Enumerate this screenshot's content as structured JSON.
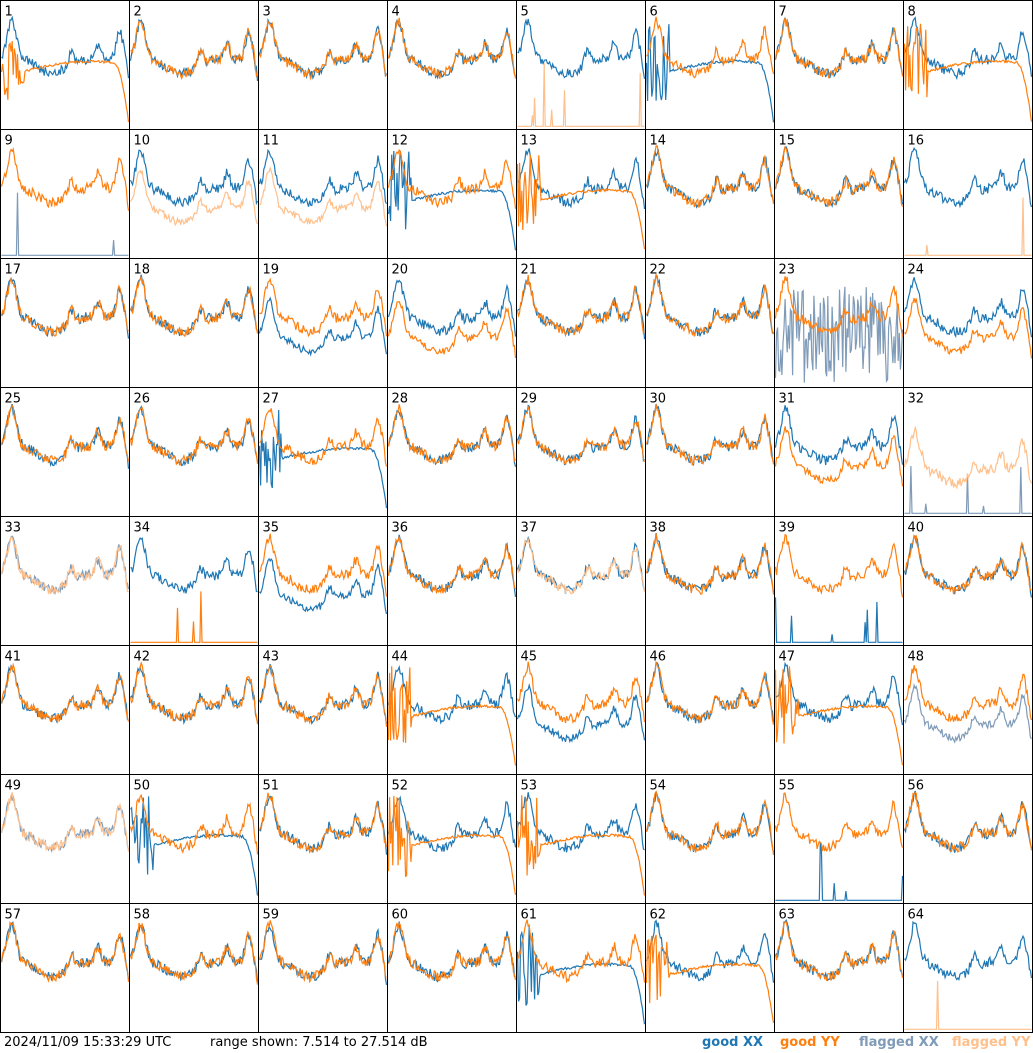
{
  "footer": {
    "timestamp": "2024/11/09 15:33:29 UTC",
    "range_text": "range shown: 7.514 to 27.514 dB"
  },
  "legend": [
    {
      "label": "good XX",
      "color": "#1f77b4"
    },
    {
      "label": "good YY",
      "color": "#ff7f0e"
    },
    {
      "label": "flagged XX",
      "color": "#7f9bb8"
    },
    {
      "label": "flagged YY",
      "color": "#ffc08c"
    }
  ],
  "chart_data": {
    "type": "line",
    "ylim": [
      7.514,
      27.514
    ],
    "grid": {
      "rows": 8,
      "cols": 8
    },
    "panels": [
      {
        "id": "1",
        "xx": "good",
        "yy": "good",
        "xx_shape": "normal",
        "yy_shape": "droop"
      },
      {
        "id": "2",
        "xx": "good",
        "yy": "good",
        "xx_shape": "normal",
        "yy_shape": "normal"
      },
      {
        "id": "3",
        "xx": "good",
        "yy": "good",
        "xx_shape": "normal",
        "yy_shape": "normal"
      },
      {
        "id": "4",
        "xx": "good",
        "yy": "good",
        "xx_shape": "normal",
        "yy_shape": "normal"
      },
      {
        "id": "5",
        "xx": "good",
        "yy": "flagged",
        "xx_shape": "normal",
        "yy_shape": "dead"
      },
      {
        "id": "6",
        "xx": "good",
        "yy": "good",
        "xx_shape": "droop",
        "yy_shape": "normal"
      },
      {
        "id": "7",
        "xx": "good",
        "yy": "good",
        "xx_shape": "normal",
        "yy_shape": "normal"
      },
      {
        "id": "8",
        "xx": "good",
        "yy": "good",
        "xx_shape": "normal",
        "yy_shape": "droop"
      },
      {
        "id": "9",
        "xx": "flagged",
        "yy": "good",
        "xx_shape": "dead",
        "yy_shape": "normal"
      },
      {
        "id": "10",
        "xx": "good",
        "yy": "flagged",
        "xx_shape": "normal",
        "yy_shape": "low"
      },
      {
        "id": "11",
        "xx": "good",
        "yy": "flagged",
        "xx_shape": "normal",
        "yy_shape": "low"
      },
      {
        "id": "12",
        "xx": "good",
        "yy": "good",
        "xx_shape": "droop",
        "yy_shape": "normal"
      },
      {
        "id": "13",
        "xx": "good",
        "yy": "good",
        "xx_shape": "normal",
        "yy_shape": "droop"
      },
      {
        "id": "14",
        "xx": "good",
        "yy": "good",
        "xx_shape": "normal",
        "yy_shape": "normal"
      },
      {
        "id": "15",
        "xx": "good",
        "yy": "good",
        "xx_shape": "normal",
        "yy_shape": "normal"
      },
      {
        "id": "16",
        "xx": "good",
        "yy": "flagged",
        "xx_shape": "normal",
        "yy_shape": "dead"
      },
      {
        "id": "17",
        "xx": "good",
        "yy": "good",
        "xx_shape": "normal",
        "yy_shape": "normal"
      },
      {
        "id": "18",
        "xx": "good",
        "yy": "good",
        "xx_shape": "normal",
        "yy_shape": "normal"
      },
      {
        "id": "19",
        "xx": "good",
        "yy": "good",
        "xx_shape": "low",
        "yy_shape": "normal"
      },
      {
        "id": "20",
        "xx": "good",
        "yy": "good",
        "xx_shape": "normal",
        "yy_shape": "low"
      },
      {
        "id": "21",
        "xx": "good",
        "yy": "good",
        "xx_shape": "normal",
        "yy_shape": "normal"
      },
      {
        "id": "22",
        "xx": "good",
        "yy": "good",
        "xx_shape": "normal",
        "yy_shape": "normal"
      },
      {
        "id": "23",
        "xx": "flagged",
        "yy": "good",
        "xx_shape": "noisy",
        "yy_shape": "normal"
      },
      {
        "id": "24",
        "xx": "good",
        "yy": "good",
        "xx_shape": "normal",
        "yy_shape": "low"
      },
      {
        "id": "25",
        "xx": "good",
        "yy": "good",
        "xx_shape": "normal",
        "yy_shape": "normal"
      },
      {
        "id": "26",
        "xx": "good",
        "yy": "good",
        "xx_shape": "normal",
        "yy_shape": "normal"
      },
      {
        "id": "27",
        "xx": "good",
        "yy": "good",
        "xx_shape": "droop",
        "yy_shape": "normal"
      },
      {
        "id": "28",
        "xx": "good",
        "yy": "good",
        "xx_shape": "normal",
        "yy_shape": "normal"
      },
      {
        "id": "29",
        "xx": "good",
        "yy": "good",
        "xx_shape": "normal",
        "yy_shape": "normal"
      },
      {
        "id": "30",
        "xx": "good",
        "yy": "good",
        "xx_shape": "normal",
        "yy_shape": "normal"
      },
      {
        "id": "31",
        "xx": "good",
        "yy": "good",
        "xx_shape": "normal",
        "yy_shape": "low"
      },
      {
        "id": "32",
        "xx": "flagged",
        "yy": "flagged",
        "xx_shape": "dead",
        "yy_shape": "spiky"
      },
      {
        "id": "33",
        "xx": "flagged",
        "yy": "flagged",
        "xx_shape": "normal",
        "yy_shape": "normal"
      },
      {
        "id": "34",
        "xx": "good",
        "yy": "good",
        "xx_shape": "normal",
        "yy_shape": "dead"
      },
      {
        "id": "35",
        "xx": "good",
        "yy": "good",
        "xx_shape": "low",
        "yy_shape": "normal"
      },
      {
        "id": "36",
        "xx": "good",
        "yy": "good",
        "xx_shape": "normal",
        "yy_shape": "normal"
      },
      {
        "id": "37",
        "xx": "good",
        "yy": "flagged",
        "xx_shape": "normal",
        "yy_shape": "normal"
      },
      {
        "id": "38",
        "xx": "good",
        "yy": "good",
        "xx_shape": "normal",
        "yy_shape": "normal"
      },
      {
        "id": "39",
        "xx": "good",
        "yy": "good",
        "xx_shape": "dead",
        "yy_shape": "normal"
      },
      {
        "id": "40",
        "xx": "good",
        "yy": "good",
        "xx_shape": "normal",
        "yy_shape": "normal"
      },
      {
        "id": "41",
        "xx": "good",
        "yy": "good",
        "xx_shape": "normal",
        "yy_shape": "normal"
      },
      {
        "id": "42",
        "xx": "good",
        "yy": "good",
        "xx_shape": "normal",
        "yy_shape": "normal"
      },
      {
        "id": "43",
        "xx": "good",
        "yy": "good",
        "xx_shape": "normal",
        "yy_shape": "normal"
      },
      {
        "id": "44",
        "xx": "good",
        "yy": "good",
        "xx_shape": "normal",
        "yy_shape": "droop"
      },
      {
        "id": "45",
        "xx": "good",
        "yy": "good",
        "xx_shape": "low",
        "yy_shape": "normal"
      },
      {
        "id": "46",
        "xx": "good",
        "yy": "good",
        "xx_shape": "normal",
        "yy_shape": "normal"
      },
      {
        "id": "47",
        "xx": "good",
        "yy": "good",
        "xx_shape": "normal",
        "yy_shape": "droop"
      },
      {
        "id": "48",
        "xx": "flagged",
        "yy": "good",
        "xx_shape": "low",
        "yy_shape": "normal"
      },
      {
        "id": "49",
        "xx": "flagged",
        "yy": "flagged",
        "xx_shape": "normal",
        "yy_shape": "normal"
      },
      {
        "id": "50",
        "xx": "good",
        "yy": "good",
        "xx_shape": "droop",
        "yy_shape": "normal"
      },
      {
        "id": "51",
        "xx": "good",
        "yy": "good",
        "xx_shape": "normal",
        "yy_shape": "normal"
      },
      {
        "id": "52",
        "xx": "good",
        "yy": "good",
        "xx_shape": "normal",
        "yy_shape": "droop"
      },
      {
        "id": "53",
        "xx": "good",
        "yy": "good",
        "xx_shape": "normal",
        "yy_shape": "droop"
      },
      {
        "id": "54",
        "xx": "good",
        "yy": "good",
        "xx_shape": "normal",
        "yy_shape": "normal"
      },
      {
        "id": "55",
        "xx": "good",
        "yy": "good",
        "xx_shape": "dead",
        "yy_shape": "normal"
      },
      {
        "id": "56",
        "xx": "good",
        "yy": "good",
        "xx_shape": "normal",
        "yy_shape": "normal"
      },
      {
        "id": "57",
        "xx": "good",
        "yy": "good",
        "xx_shape": "normal",
        "yy_shape": "normal"
      },
      {
        "id": "58",
        "xx": "good",
        "yy": "good",
        "xx_shape": "normal",
        "yy_shape": "normal"
      },
      {
        "id": "59",
        "xx": "good",
        "yy": "good",
        "xx_shape": "normal",
        "yy_shape": "normal"
      },
      {
        "id": "60",
        "xx": "good",
        "yy": "good",
        "xx_shape": "normal",
        "yy_shape": "normal"
      },
      {
        "id": "61",
        "xx": "good",
        "yy": "good",
        "xx_shape": "droop",
        "yy_shape": "normal"
      },
      {
        "id": "62",
        "xx": "good",
        "yy": "good",
        "xx_shape": "normal",
        "yy_shape": "droop"
      },
      {
        "id": "63",
        "xx": "good",
        "yy": "good",
        "xx_shape": "normal",
        "yy_shape": "normal"
      },
      {
        "id": "64",
        "xx": "good",
        "yy": "flagged",
        "xx_shape": "normal",
        "yy_shape": "dead"
      }
    ]
  }
}
